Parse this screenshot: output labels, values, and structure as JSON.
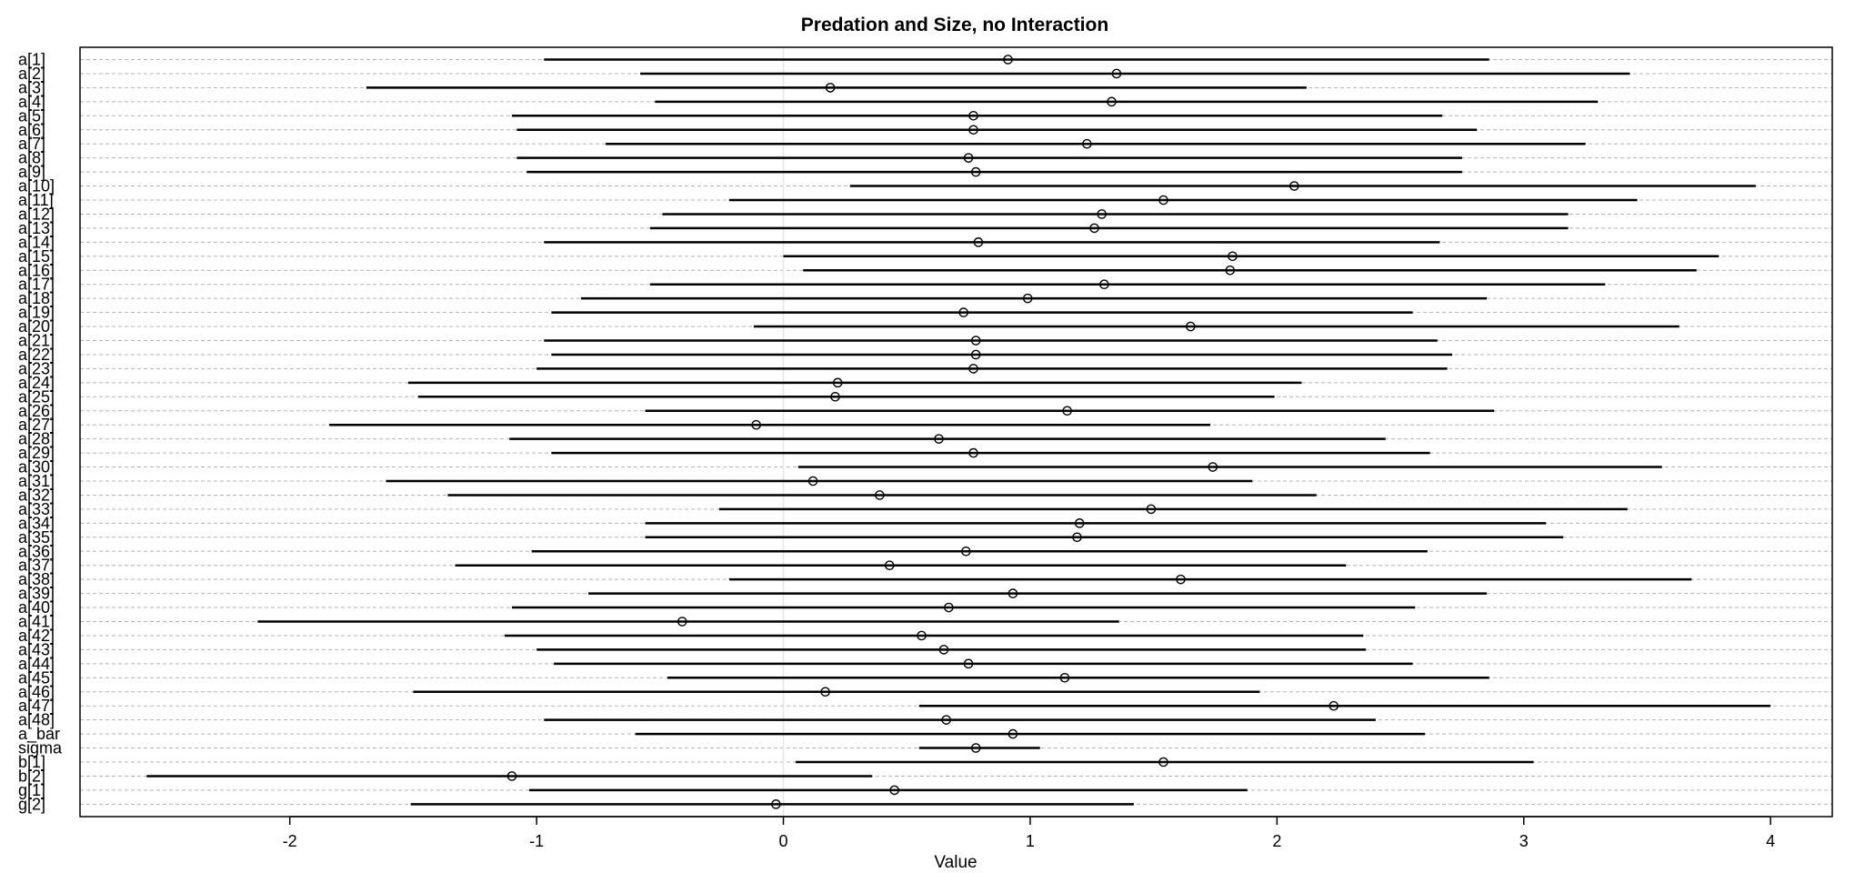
{
  "chart_data": {
    "type": "dot-interval",
    "title": "Predation and Size, no Interaction",
    "xlabel": "Value",
    "ylabel": "",
    "xlim": [
      -2.85,
      4.25
    ],
    "xticks": [
      -2,
      -1,
      0,
      1,
      2,
      3,
      4
    ],
    "xtick_labels": [
      "-2",
      "-1",
      "0",
      "1",
      "2",
      "3",
      "4"
    ],
    "grid": "horizontal dashed",
    "reference_line": 0,
    "parameters": [
      {
        "label": "a[1]",
        "mean": 0.91,
        "lower": -0.97,
        "upper": 2.86
      },
      {
        "label": "a[2]",
        "mean": 1.35,
        "lower": -0.58,
        "upper": 3.43
      },
      {
        "label": "a[3]",
        "mean": 0.19,
        "lower": -1.69,
        "upper": 2.12
      },
      {
        "label": "a[4]",
        "mean": 1.33,
        "lower": -0.52,
        "upper": 3.3
      },
      {
        "label": "a[5]",
        "mean": 0.77,
        "lower": -1.1,
        "upper": 2.67
      },
      {
        "label": "a[6]",
        "mean": 0.77,
        "lower": -1.08,
        "upper": 2.81
      },
      {
        "label": "a[7]",
        "mean": 1.23,
        "lower": -0.72,
        "upper": 3.25
      },
      {
        "label": "a[8]",
        "mean": 0.75,
        "lower": -1.08,
        "upper": 2.75
      },
      {
        "label": "a[9]",
        "mean": 0.78,
        "lower": -1.04,
        "upper": 2.75
      },
      {
        "label": "a[10]",
        "mean": 2.07,
        "lower": 0.27,
        "upper": 3.94
      },
      {
        "label": "a[11]",
        "mean": 1.54,
        "lower": -0.22,
        "upper": 3.46
      },
      {
        "label": "a[12]",
        "mean": 1.29,
        "lower": -0.49,
        "upper": 3.18
      },
      {
        "label": "a[13]",
        "mean": 1.26,
        "lower": -0.54,
        "upper": 3.18
      },
      {
        "label": "a[14]",
        "mean": 0.79,
        "lower": -0.97,
        "upper": 2.66
      },
      {
        "label": "a[15]",
        "mean": 1.82,
        "lower": 0.0,
        "upper": 3.79
      },
      {
        "label": "a[16]",
        "mean": 1.81,
        "lower": 0.08,
        "upper": 3.7
      },
      {
        "label": "a[17]",
        "mean": 1.3,
        "lower": -0.54,
        "upper": 3.33
      },
      {
        "label": "a[18]",
        "mean": 0.99,
        "lower": -0.82,
        "upper": 2.85
      },
      {
        "label": "a[19]",
        "mean": 0.73,
        "lower": -0.94,
        "upper": 2.55
      },
      {
        "label": "a[20]",
        "mean": 1.65,
        "lower": -0.12,
        "upper": 3.63
      },
      {
        "label": "a[21]",
        "mean": 0.78,
        "lower": -0.97,
        "upper": 2.65
      },
      {
        "label": "a[22]",
        "mean": 0.78,
        "lower": -0.94,
        "upper": 2.71
      },
      {
        "label": "a[23]",
        "mean": 0.77,
        "lower": -1.0,
        "upper": 2.69
      },
      {
        "label": "a[24]",
        "mean": 0.22,
        "lower": -1.52,
        "upper": 2.1
      },
      {
        "label": "a[25]",
        "mean": 0.21,
        "lower": -1.48,
        "upper": 1.99
      },
      {
        "label": "a[26]",
        "mean": 1.15,
        "lower": -0.56,
        "upper": 2.88
      },
      {
        "label": "a[27]",
        "mean": -0.11,
        "lower": -1.84,
        "upper": 1.73
      },
      {
        "label": "a[28]",
        "mean": 0.63,
        "lower": -1.11,
        "upper": 2.44
      },
      {
        "label": "a[29]",
        "mean": 0.77,
        "lower": -0.94,
        "upper": 2.62
      },
      {
        "label": "a[30]",
        "mean": 1.74,
        "lower": 0.06,
        "upper": 3.56
      },
      {
        "label": "a[31]",
        "mean": 0.12,
        "lower": -1.61,
        "upper": 1.9
      },
      {
        "label": "a[32]",
        "mean": 0.39,
        "lower": -1.36,
        "upper": 2.16
      },
      {
        "label": "a[33]",
        "mean": 1.49,
        "lower": -0.26,
        "upper": 3.42
      },
      {
        "label": "a[34]",
        "mean": 1.2,
        "lower": -0.56,
        "upper": 3.09
      },
      {
        "label": "a[35]",
        "mean": 1.19,
        "lower": -0.56,
        "upper": 3.16
      },
      {
        "label": "a[36]",
        "mean": 0.74,
        "lower": -1.02,
        "upper": 2.61
      },
      {
        "label": "a[37]",
        "mean": 0.43,
        "lower": -1.33,
        "upper": 2.28
      },
      {
        "label": "a[38]",
        "mean": 1.61,
        "lower": -0.22,
        "upper": 3.68
      },
      {
        "label": "a[39]",
        "mean": 0.93,
        "lower": -0.79,
        "upper": 2.85
      },
      {
        "label": "a[40]",
        "mean": 0.67,
        "lower": -1.1,
        "upper": 2.56
      },
      {
        "label": "a[41]",
        "mean": -0.41,
        "lower": -2.13,
        "upper": 1.36
      },
      {
        "label": "a[42]",
        "mean": 0.56,
        "lower": -1.13,
        "upper": 2.35
      },
      {
        "label": "a[43]",
        "mean": 0.65,
        "lower": -1.0,
        "upper": 2.36
      },
      {
        "label": "a[44]",
        "mean": 0.75,
        "lower": -0.93,
        "upper": 2.55
      },
      {
        "label": "a[45]",
        "mean": 1.14,
        "lower": -0.47,
        "upper": 2.86
      },
      {
        "label": "a[46]",
        "mean": 0.17,
        "lower": -1.5,
        "upper": 1.93
      },
      {
        "label": "a[47]",
        "mean": 2.23,
        "lower": 0.55,
        "upper": 4.0
      },
      {
        "label": "a[48]",
        "mean": 0.66,
        "lower": -0.97,
        "upper": 2.4
      },
      {
        "label": "a_bar",
        "mean": 0.93,
        "lower": -0.6,
        "upper": 2.6
      },
      {
        "label": "sigma",
        "mean": 0.78,
        "lower": 0.55,
        "upper": 1.04
      },
      {
        "label": "b[1]",
        "mean": 1.54,
        "lower": 0.05,
        "upper": 3.04
      },
      {
        "label": "b[2]",
        "mean": -1.1,
        "lower": -2.58,
        "upper": 0.36
      },
      {
        "label": "g[1]",
        "mean": 0.45,
        "lower": -1.03,
        "upper": 1.88
      },
      {
        "label": "g[2]",
        "mean": -0.03,
        "lower": -1.51,
        "upper": 1.42
      }
    ]
  }
}
